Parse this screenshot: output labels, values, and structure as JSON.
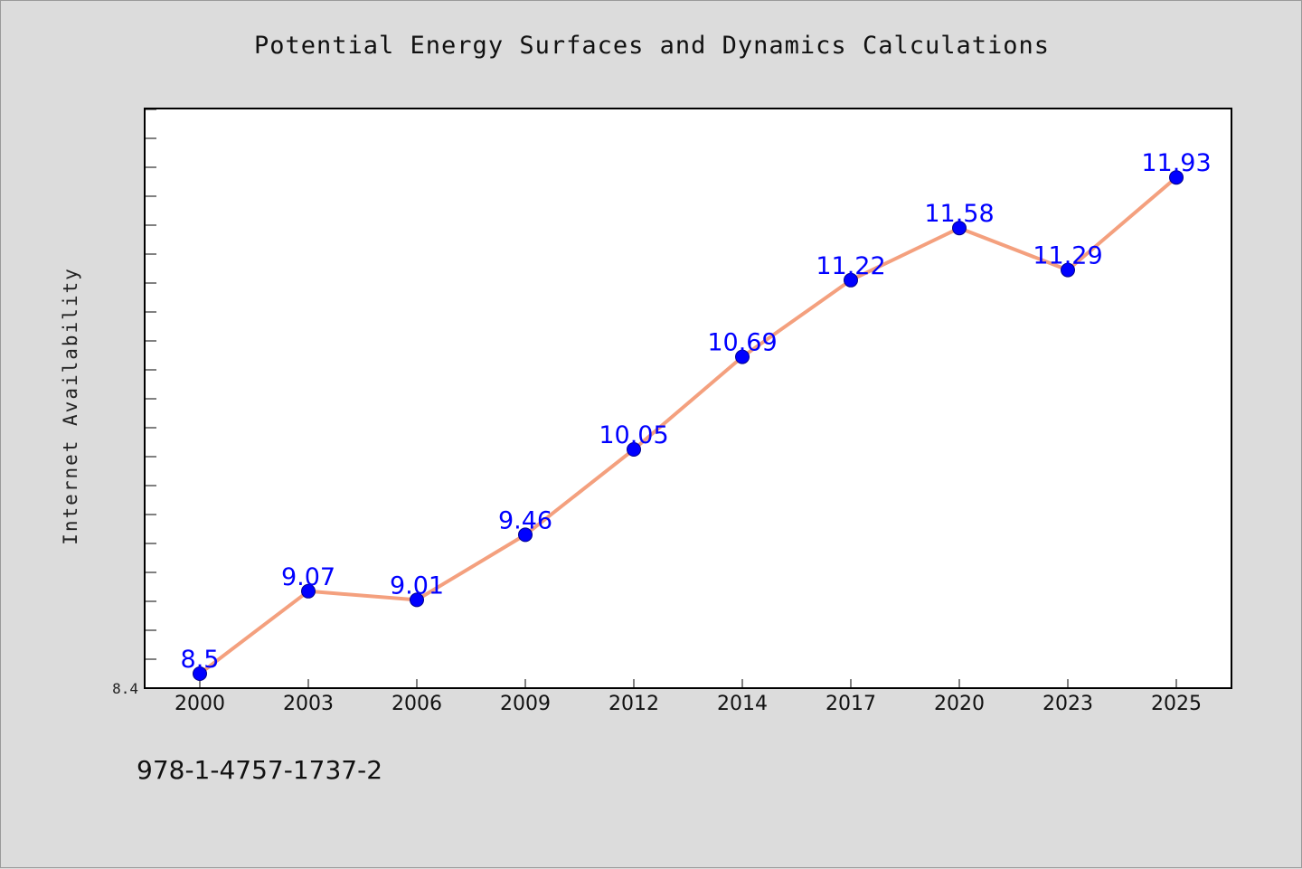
{
  "chart_data": {
    "type": "line",
    "title": "Potential Energy Surfaces and Dynamics Calculations",
    "ylabel": "Internet Availability",
    "xlabel": "",
    "categories": [
      "2000",
      "2003",
      "2006",
      "2009",
      "2012",
      "2014",
      "2017",
      "2020",
      "2023",
      "2025"
    ],
    "series": [
      {
        "values": [
          8.5,
          9.07,
          9.01,
          9.46,
          10.05,
          10.69,
          11.22,
          11.58,
          11.29,
          11.93
        ]
      }
    ],
    "data_labels": [
      "8.5",
      "9.07",
      "9.01",
      "9.46",
      "10.05",
      "10.69",
      "11.22",
      "11.58",
      "11.29",
      "11.93"
    ],
    "y_tick_labels": [
      "8.4"
    ],
    "ylim": [
      8.4,
      12.4
    ],
    "grid": false,
    "line_color": "#f4a07e",
    "marker_color": "#0000ff",
    "label_color": "#0000ff"
  },
  "footer": {
    "isbn": "978-1-4757-1737-2"
  }
}
